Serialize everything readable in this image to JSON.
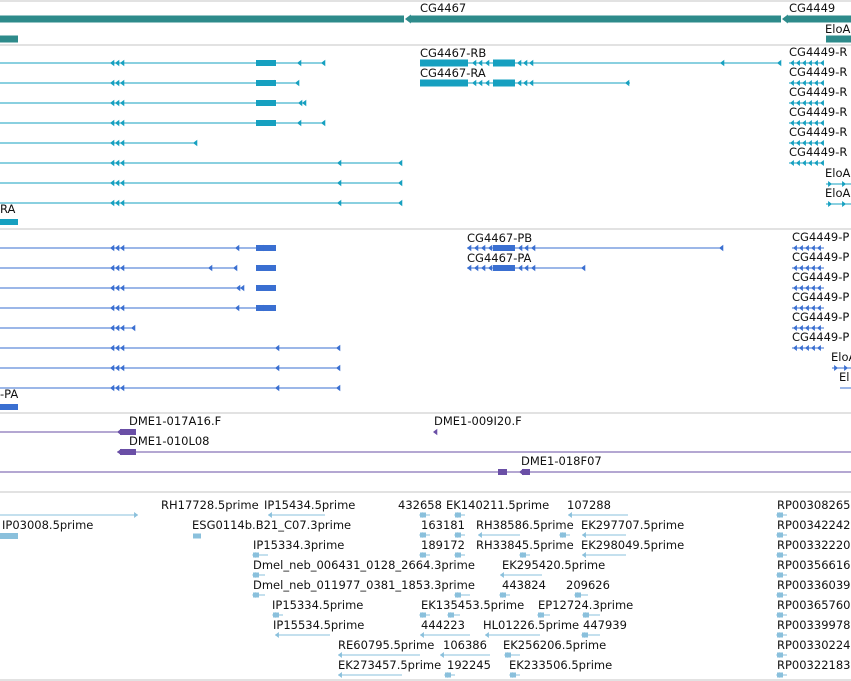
{
  "colors": {
    "gene": "#2e8b8b",
    "flybase_transcript": "#16a0c0",
    "refseq_transcript": "#3a6fd1",
    "clone": "#6a4fa6",
    "est": "#8ac0dc",
    "separator": "#c4c4c4",
    "label": "#111111"
  },
  "tracks": {
    "genes": {
      "labels": [
        "CG4467",
        "CG4449",
        "EloA"
      ]
    },
    "flybase_transcripts": {
      "labels": [
        "RA",
        "CG4467-RB",
        "CG4467-RA",
        "CG4449-R",
        "CG4449-R",
        "CG4449-R",
        "CG4449-R",
        "CG4449-R",
        "CG4449-R",
        "EloA",
        "EloA"
      ]
    },
    "refseq_transcripts": {
      "labels": [
        "-PA",
        "CG4467-PB",
        "CG4467-PA",
        "CG4449-P",
        "CG4449-P",
        "CG4449-P",
        "CG4449-P",
        "CG4449-P",
        "CG4449-P",
        "EloA",
        "El"
      ]
    },
    "clones": {
      "labels": [
        "DME1-017A16.F",
        "DME1-010L08",
        "DME1-009I20.F",
        "DME1-018F07"
      ]
    },
    "ests": {
      "labels": [
        "IP03008.5prime",
        "RH17728.5prime",
        "IP15434.5prime",
        "432658",
        "EK140211.5prime",
        "107288",
        "RP00308265",
        "ESG0114b.B21_C07.3prime",
        "163181",
        "RH38586.5prime",
        "EK297707.5prime",
        "RP00342242",
        "IP15334.3prime",
        "189172",
        "RH33845.5prime",
        "EK298049.5prime",
        "RP00332220",
        "Dmel_neb_006431_0128_2664.3prime",
        "EK295420.5prime",
        "RP00356616",
        "Dmel_neb_011977_0381_1853.3prime",
        "443824",
        "209626",
        "RP00336039",
        "IP15334.5prime",
        "EK135453.5prime",
        "EP12724.3prime",
        "RP00365760",
        "IP15534.5prime",
        "444223",
        "HL01226.5prime",
        "447939",
        "RP00339978",
        "RE60795.5prime",
        "106386",
        "EK256206.5prime",
        "RP00330224",
        "EK273457.5prime",
        "192245",
        "EK233506.5prime",
        "RP00322183"
      ]
    }
  }
}
